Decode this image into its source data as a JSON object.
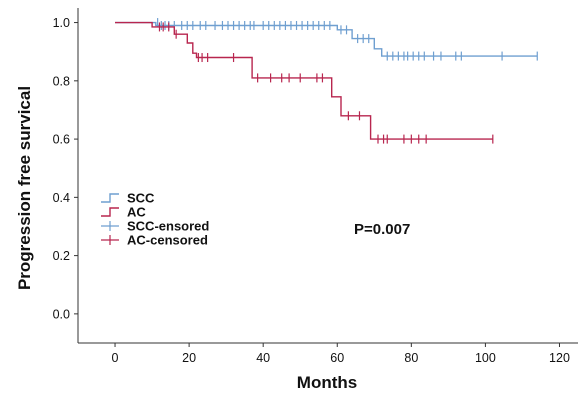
{
  "chart_data": {
    "type": "line",
    "title": "",
    "xlabel": "Months",
    "ylabel": "Progression free survical",
    "xlim": [
      -10,
      125
    ],
    "ylim": [
      -0.1,
      1.05
    ],
    "xticks": [
      0,
      20,
      40,
      60,
      80,
      100,
      120
    ],
    "yticks": [
      0.0,
      0.2,
      0.4,
      0.6,
      0.8,
      1.0
    ],
    "xtick_labels": [
      "0",
      "20",
      "40",
      "60",
      "80",
      "100",
      "120"
    ],
    "ytick_labels": [
      "0.0",
      "0.2",
      "0.4",
      "0.6",
      "0.8",
      "1.0"
    ],
    "grid": false,
    "legend_position": "lower-left",
    "legend": [
      {
        "label": "SCC",
        "kind": "step",
        "color": "#6f9fd0"
      },
      {
        "label": "AC",
        "kind": "step",
        "color": "#b8264f"
      },
      {
        "label": "SCC-ensored",
        "kind": "censor",
        "color": "#6f9fd0"
      },
      {
        "label": "AC-censored",
        "kind": "censor",
        "color": "#b8264f"
      }
    ],
    "annotation": "P=0.007",
    "series": [
      {
        "name": "SCC",
        "color": "#6f9fd0",
        "steps": [
          [
            0,
            1.0
          ],
          [
            11,
            0.99
          ],
          [
            60,
            0.975
          ],
          [
            64,
            0.945
          ],
          [
            70,
            0.91
          ],
          [
            72,
            0.885
          ],
          [
            114,
            0.885
          ]
        ],
        "censored": [
          [
            11.5,
            1.0
          ],
          [
            12.5,
            0.99
          ],
          [
            13.5,
            0.99
          ],
          [
            14.5,
            0.99
          ],
          [
            16,
            0.99
          ],
          [
            18,
            0.99
          ],
          [
            19.5,
            0.99
          ],
          [
            21,
            0.99
          ],
          [
            23,
            0.99
          ],
          [
            24.5,
            0.99
          ],
          [
            27,
            0.99
          ],
          [
            29,
            0.99
          ],
          [
            30.5,
            0.99
          ],
          [
            32,
            0.99
          ],
          [
            33.5,
            0.99
          ],
          [
            35,
            0.99
          ],
          [
            36.5,
            0.99
          ],
          [
            37.5,
            0.99
          ],
          [
            40,
            0.99
          ],
          [
            41.5,
            0.99
          ],
          [
            43,
            0.99
          ],
          [
            44.5,
            0.99
          ],
          [
            46,
            0.99
          ],
          [
            47.5,
            0.99
          ],
          [
            49,
            0.99
          ],
          [
            50.5,
            0.99
          ],
          [
            52,
            0.99
          ],
          [
            53.5,
            0.99
          ],
          [
            55,
            0.99
          ],
          [
            56.5,
            0.99
          ],
          [
            58,
            0.99
          ],
          [
            61,
            0.975
          ],
          [
            62.5,
            0.975
          ],
          [
            65.5,
            0.945
          ],
          [
            67,
            0.945
          ],
          [
            68.5,
            0.945
          ],
          [
            73.5,
            0.885
          ],
          [
            75,
            0.885
          ],
          [
            76.5,
            0.885
          ],
          [
            78,
            0.885
          ],
          [
            79,
            0.885
          ],
          [
            80.5,
            0.885
          ],
          [
            82,
            0.885
          ],
          [
            83.5,
            0.885
          ],
          [
            86,
            0.885
          ],
          [
            88,
            0.885
          ],
          [
            92,
            0.885
          ],
          [
            93.5,
            0.885
          ],
          [
            104.5,
            0.885
          ],
          [
            114,
            0.885
          ]
        ]
      },
      {
        "name": "AC",
        "color": "#b8264f",
        "steps": [
          [
            0,
            1.0
          ],
          [
            10,
            0.985
          ],
          [
            16,
            0.96
          ],
          [
            19.5,
            0.93
          ],
          [
            21,
            0.895
          ],
          [
            22,
            0.88
          ],
          [
            37,
            0.81
          ],
          [
            58.5,
            0.745
          ],
          [
            61,
            0.68
          ],
          [
            69,
            0.6
          ],
          [
            102,
            0.6
          ]
        ],
        "censored": [
          [
            12,
            0.985
          ],
          [
            13,
            0.985
          ],
          [
            14.5,
            0.985
          ],
          [
            16.5,
            0.96
          ],
          [
            22.5,
            0.88
          ],
          [
            23.5,
            0.88
          ],
          [
            25,
            0.88
          ],
          [
            32,
            0.88
          ],
          [
            38.5,
            0.81
          ],
          [
            42,
            0.81
          ],
          [
            45,
            0.81
          ],
          [
            47,
            0.81
          ],
          [
            50,
            0.81
          ],
          [
            54.5,
            0.81
          ],
          [
            56,
            0.81
          ],
          [
            63,
            0.68
          ],
          [
            66,
            0.68
          ],
          [
            71,
            0.6
          ],
          [
            72.5,
            0.6
          ],
          [
            73.5,
            0.6
          ],
          [
            78,
            0.6
          ],
          [
            80,
            0.6
          ],
          [
            82,
            0.6
          ],
          [
            84,
            0.6
          ],
          [
            102,
            0.6
          ]
        ]
      }
    ]
  }
}
